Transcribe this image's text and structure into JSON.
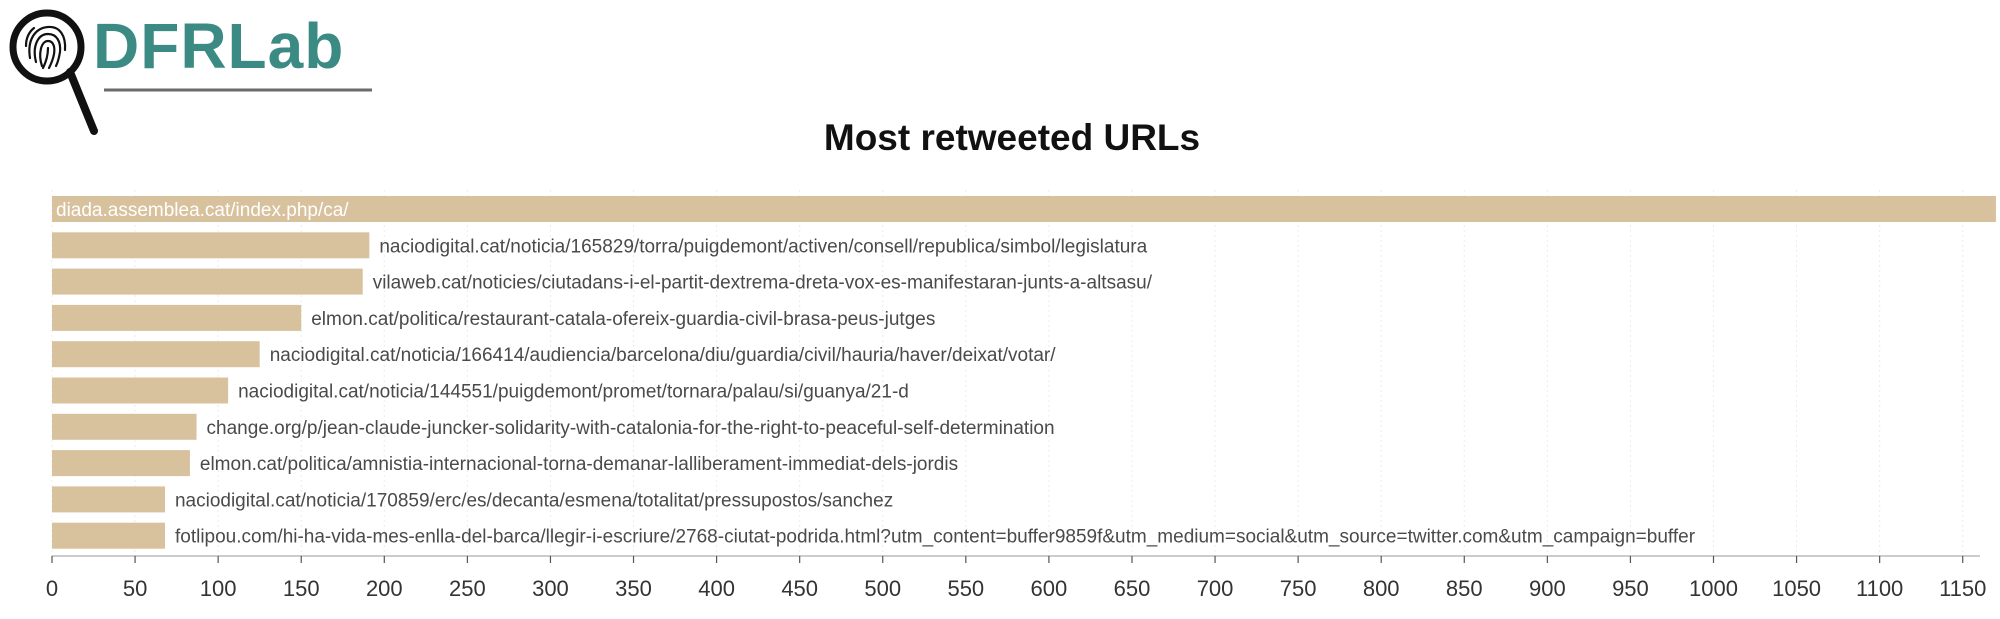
{
  "logo": {
    "text": "DFRLab",
    "icon": "magnifier-fingerprint-icon"
  },
  "colors": {
    "bar": "#d8c19d",
    "logo_teal": "#3c8a84",
    "title": "#111111"
  },
  "chart_data": {
    "type": "bar",
    "orientation": "horizontal",
    "title": "Most retweeted URLs",
    "xlabel": "",
    "ylabel": "",
    "xlim": [
      0,
      1175
    ],
    "x_ticks": [
      0,
      50,
      100,
      150,
      200,
      250,
      300,
      350,
      400,
      450,
      500,
      550,
      600,
      650,
      700,
      750,
      800,
      850,
      900,
      950,
      1000,
      1050,
      1100,
      1150
    ],
    "grid": true,
    "legend": "none",
    "categories": [
      "diada.assemblea.cat/index.php/ca/",
      "naciodigital.cat/noticia/165829/torra/puigdemont/activen/consell/republica/simbol/legislatura",
      "vilaweb.cat/noticies/ciutadans-i-el-partit-dextrema-dreta-vox-es-manifestaran-junts-a-altsasu/",
      "elmon.cat/politica/restaurant-catala-ofereix-guardia-civil-brasa-peus-jutges",
      "naciodigital.cat/noticia/166414/audiencia/barcelona/diu/guardia/civil/hauria/haver/deixat/votar/",
      "naciodigital.cat/noticia/144551/puigdemont/promet/tornara/palau/si/guanya/21-d",
      "change.org/p/jean-claude-juncker-solidarity-with-catalonia-for-the-right-to-peaceful-self-determination",
      "elmon.cat/politica/amnistia-internacional-torna-demanar-lalliberament-immediat-dels-jordis",
      "naciodigital.cat/noticia/170859/erc/es/decanta/esmena/totalitat/pressupostos/sanchez",
      "fotlipou.com/hi-ha-vida-mes-enlla-del-barca/llegir-i-escriure/2768-ciutat-podrida.html?utm_content=buffer9859f&utm_medium=social&utm_source=twitter.com&utm_campaign=buffer"
    ],
    "values": [
      1170,
      191,
      187,
      150,
      125,
      106,
      87,
      83,
      68,
      68
    ]
  }
}
